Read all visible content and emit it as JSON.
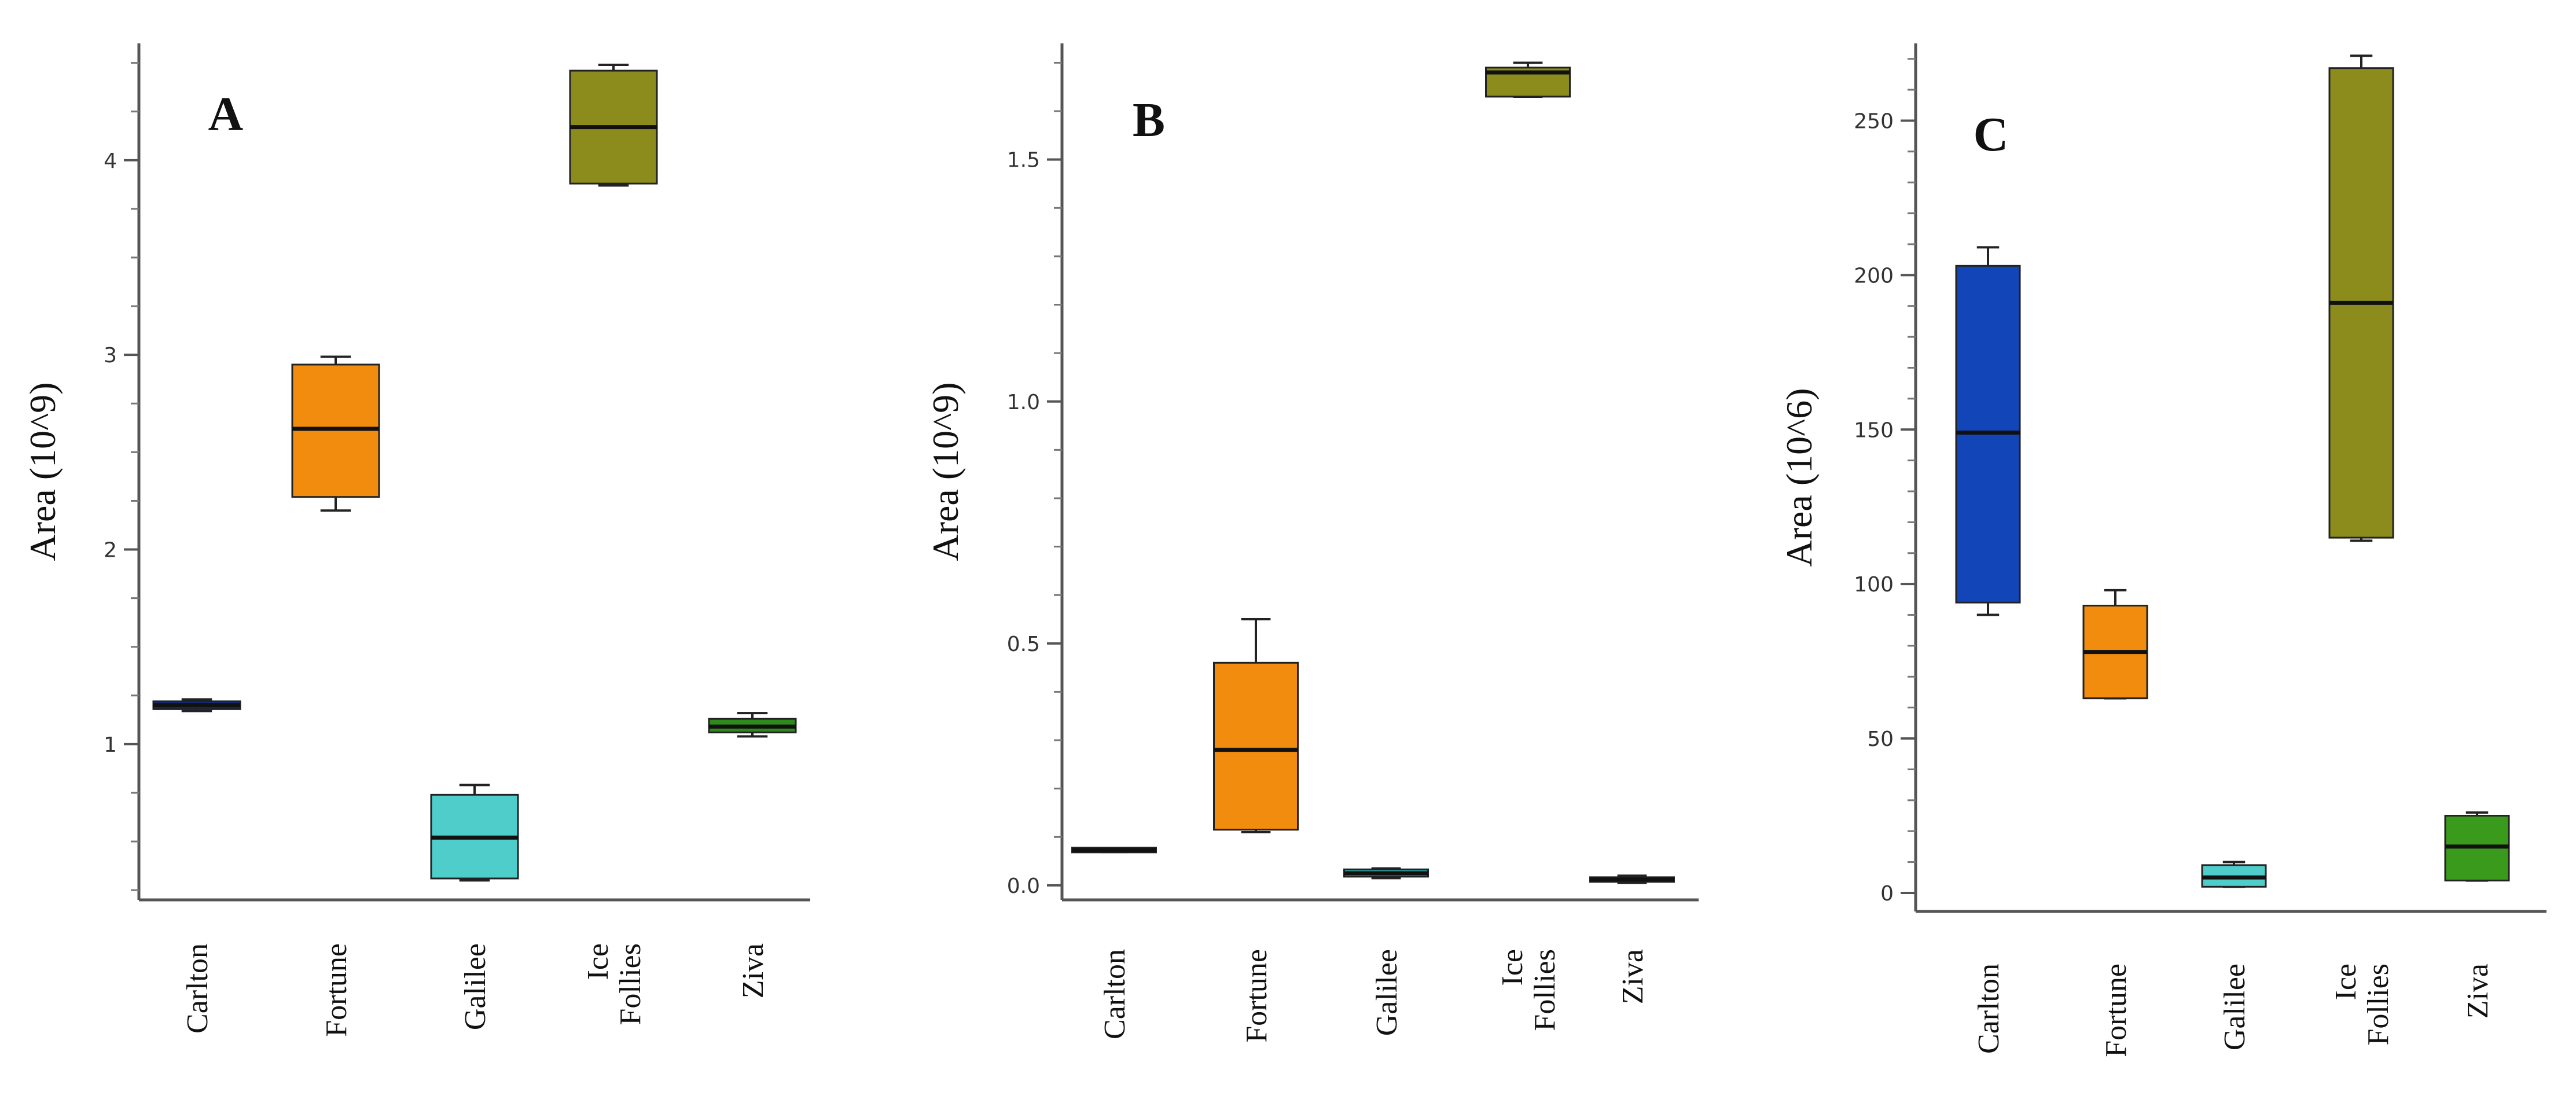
{
  "chart_data": [
    {
      "type": "box",
      "panel_label": "A",
      "ylabel": "Area (10^9)",
      "ylim": [
        0.2,
        4.6
      ],
      "yticks": [
        1,
        2,
        3,
        4
      ],
      "categories": [
        "Carlton",
        "Fortune",
        "Galilee",
        "Ice\nFollies",
        "Ziva"
      ],
      "series": [
        {
          "name": "Carlton",
          "min": 1.17,
          "q1": 1.18,
          "median": 1.2,
          "q3": 1.22,
          "max": 1.23
        },
        {
          "name": "Fortune",
          "min": 2.2,
          "q1": 2.27,
          "median": 2.62,
          "q3": 2.95,
          "max": 2.99
        },
        {
          "name": "Galilee",
          "min": 0.3,
          "q1": 0.31,
          "median": 0.52,
          "q3": 0.74,
          "max": 0.79
        },
        {
          "name": "Ice Follies",
          "min": 3.87,
          "q1": 3.88,
          "median": 4.17,
          "q3": 4.46,
          "max": 4.49
        },
        {
          "name": "Ziva",
          "min": 1.04,
          "q1": 1.06,
          "median": 1.09,
          "q3": 1.13,
          "max": 1.16
        }
      ],
      "colors": [
        "#0d2a8a",
        "#f28c0f",
        "#4ecdcb",
        "#8c8c1c",
        "#2e8b1b"
      ]
    },
    {
      "type": "box",
      "panel_label": "B",
      "ylabel": "Area (10^9)",
      "ylim": [
        -0.03,
        1.74
      ],
      "yticks": [
        0.0,
        0.5,
        1.0,
        1.5
      ],
      "ytick_labels": [
        "0.0",
        "0.5",
        "1.0",
        "1.5"
      ],
      "categories": [
        "Carlton",
        "Fortune",
        "Galilee",
        "Ice\nFollies",
        "Ziva"
      ],
      "series": [
        {
          "name": "Carlton",
          "min": 0.069,
          "q1": 0.071,
          "median": 0.073,
          "q3": 0.075,
          "max": 0.077
        },
        {
          "name": "Fortune",
          "min": 0.11,
          "q1": 0.115,
          "median": 0.28,
          "q3": 0.46,
          "max": 0.55
        },
        {
          "name": "Galilee",
          "min": 0.015,
          "q1": 0.018,
          "median": 0.025,
          "q3": 0.033,
          "max": 0.035
        },
        {
          "name": "Ice Follies",
          "min": 1.63,
          "q1": 1.63,
          "median": 1.68,
          "q3": 1.69,
          "max": 1.7
        },
        {
          "name": "Ziva",
          "min": 0.005,
          "q1": 0.008,
          "median": 0.012,
          "q3": 0.016,
          "max": 0.02
        }
      ],
      "colors": [
        "#0d1b5e",
        "#f28c0f",
        "#2aa7a3",
        "#8c8c1c",
        "#1e5a14"
      ]
    },
    {
      "type": "box",
      "panel_label": "C",
      "ylabel": "Area (10^6)",
      "ylim": [
        -6,
        275
      ],
      "yticks": [
        0,
        50,
        100,
        150,
        200,
        250
      ],
      "categories": [
        "Carlton",
        "Fortune",
        "Galilee",
        "Ice\nFollies",
        "Ziva"
      ],
      "series": [
        {
          "name": "Carlton",
          "min": 90,
          "q1": 94,
          "median": 149,
          "q3": 203,
          "max": 209
        },
        {
          "name": "Fortune",
          "min": 63,
          "q1": 63,
          "median": 78,
          "q3": 93,
          "max": 98
        },
        {
          "name": "Galilee",
          "min": 2,
          "q1": 2,
          "median": 5,
          "q3": 9,
          "max": 10
        },
        {
          "name": "Ice Follies",
          "min": 114,
          "q1": 115,
          "median": 191,
          "q3": 267,
          "max": 271
        },
        {
          "name": "Ziva",
          "min": 4,
          "q1": 4,
          "median": 15,
          "q3": 25,
          "max": 26
        }
      ],
      "colors": [
        "#1245b8",
        "#f28c0f",
        "#4ecdcb",
        "#8c8c1c",
        "#3a9a1b"
      ]
    }
  ]
}
